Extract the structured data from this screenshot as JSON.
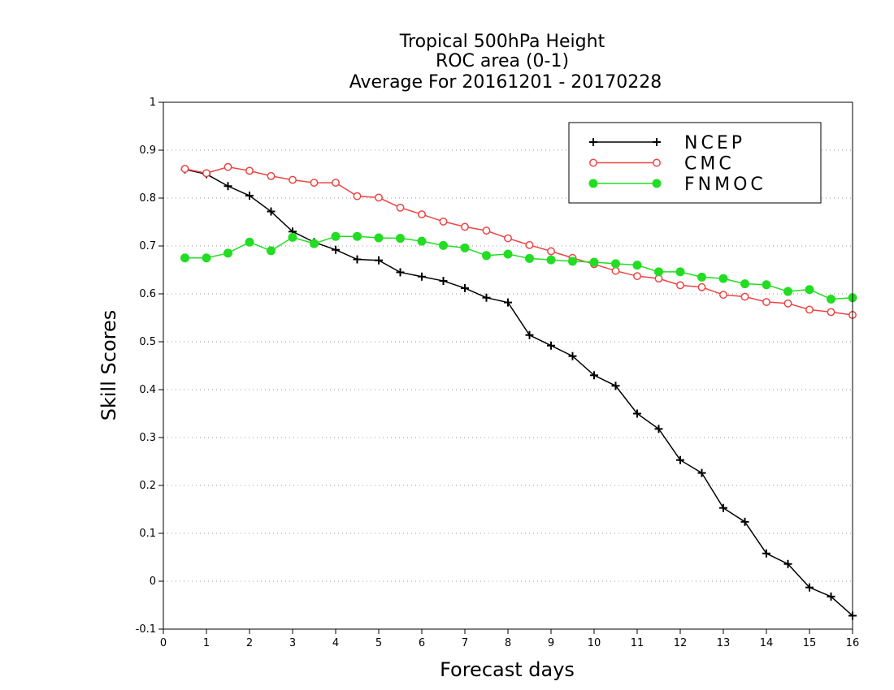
{
  "chart_data": {
    "type": "line",
    "title_lines": [
      "Tropical 500hPa Height",
      "ROC area (0-1)",
      "Average For 20161201 - 20170228"
    ],
    "xlabel": "Forecast days",
    "ylabel": "Skill Scores",
    "xlim": [
      0,
      16
    ],
    "ylim": [
      -0.1,
      1
    ],
    "xticks": [
      "0",
      "1",
      "2",
      "3",
      "4",
      "5",
      "6",
      "7",
      "8",
      "9",
      "10",
      "11",
      "12",
      "13",
      "14",
      "15",
      "16"
    ],
    "yticks": [
      "-0.1",
      "0",
      "0.1",
      "0.2",
      "0.3",
      "0.4",
      "0.5",
      "0.6",
      "0.7",
      "0.8",
      "0.9",
      "1"
    ],
    "grid": "horizontal dotted",
    "legend_position": "top-right",
    "x": [
      0.5,
      1,
      1.5,
      2,
      2.5,
      3,
      3.5,
      4,
      4.5,
      5,
      5.5,
      6,
      6.5,
      7,
      7.5,
      8,
      8.5,
      9,
      9.5,
      10,
      10.5,
      11,
      11.5,
      12,
      12.5,
      13,
      13.5,
      14,
      14.5,
      15,
      15.5,
      16
    ],
    "series": [
      {
        "name": "NCEP",
        "color": "#000000",
        "marker": "plus",
        "values": [
          0.86,
          0.85,
          0.825,
          0.805,
          0.772,
          0.73,
          0.708,
          0.692,
          0.672,
          0.67,
          0.645,
          0.636,
          0.627,
          0.612,
          0.592,
          0.582,
          0.514,
          0.492,
          0.47,
          0.43,
          0.408,
          0.35,
          0.318,
          0.253,
          0.226,
          0.153,
          0.124,
          0.058,
          0.036,
          -0.013,
          -0.032,
          -0.072
        ]
      },
      {
        "name": "CMC",
        "color": "#ee4444",
        "marker": "open-circle",
        "values": [
          0.861,
          0.852,
          0.865,
          0.857,
          0.846,
          0.838,
          0.832,
          0.832,
          0.804,
          0.801,
          0.78,
          0.766,
          0.751,
          0.74,
          0.732,
          0.716,
          0.702,
          0.689,
          0.675,
          0.662,
          0.648,
          0.637,
          0.632,
          0.618,
          0.614,
          0.598,
          0.594,
          0.583,
          0.58,
          0.567,
          0.562,
          0.556
        ]
      },
      {
        "name": "FNMOC",
        "color": "#22dd22",
        "marker": "filled-circle",
        "values": [
          0.675,
          0.675,
          0.685,
          0.708,
          0.69,
          0.718,
          0.705,
          0.72,
          0.72,
          0.717,
          0.716,
          0.71,
          0.701,
          0.696,
          0.68,
          0.683,
          0.674,
          0.671,
          0.668,
          0.666,
          0.663,
          0.66,
          0.646,
          0.646,
          0.635,
          0.632,
          0.621,
          0.619,
          0.605,
          0.609,
          0.589,
          0.592
        ]
      }
    ]
  }
}
